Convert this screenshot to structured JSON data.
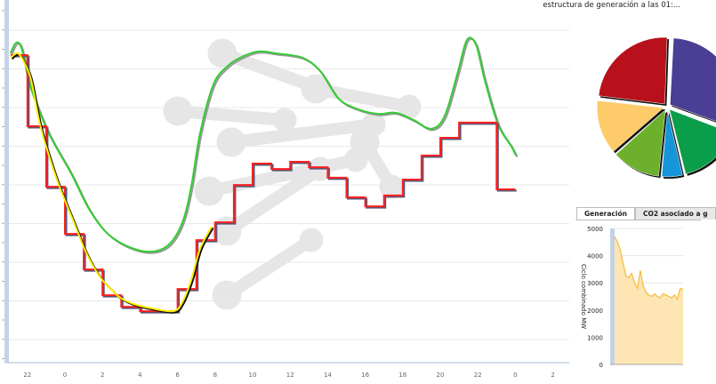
{
  "chart_data": [
    {
      "type": "line",
      "xlabel": "",
      "ylabel": "",
      "x_ticks": [
        "22",
        "0",
        "2",
        "4",
        "6",
        "8",
        "10",
        "12",
        "14",
        "16",
        "18",
        "20",
        "22",
        "0",
        "2"
      ],
      "x_tick_hours": [
        -2,
        0,
        2,
        4,
        6,
        8,
        10,
        12,
        14,
        16,
        18,
        20,
        22,
        24,
        26
      ],
      "xlim": [
        -3,
        27
      ],
      "ylim": [
        0,
        100
      ],
      "grid": true,
      "series": [
        {
          "color": "#33cc33",
          "style": "smooth",
          "x": [
            -2.9,
            -2.6,
            -2.3,
            -1.8,
            -0.85,
            0.33,
            1.28,
            2.23,
            3.41,
            4.6,
            5.55,
            6.26,
            6.73,
            7.2,
            7.91,
            8.63,
            9.34,
            10.28,
            11.23,
            12.65,
            13.6,
            14.55,
            15.5,
            16.68,
            17.63,
            18.58,
            19.53,
            20.24,
            20.95,
            21.42,
            21.9,
            22.37,
            23.08,
            23.79,
            24.03
          ],
          "y": [
            85.3,
            88.2,
            86.5,
            75.5,
            63.2,
            52.2,
            42.4,
            35.8,
            31.9,
            30.6,
            32.6,
            38.7,
            48.5,
            63.2,
            76.7,
            81.6,
            84.1,
            85.8,
            85.3,
            84.1,
            80.4,
            73,
            70.1,
            68.6,
            68.9,
            66.9,
            64.5,
            68.1,
            80.4,
            89,
            87.7,
            77.9,
            65.7,
            59.6,
            57.1
          ]
        },
        {
          "color": "#ff2020",
          "style": "step",
          "x": [
            -2.9,
            -2,
            -1,
            0,
            1,
            2,
            3,
            4,
            5,
            6,
            7,
            8,
            9,
            10,
            11,
            12,
            13,
            14,
            15,
            16,
            17,
            18,
            19,
            20,
            21,
            22,
            23
          ],
          "y": [
            84.8,
            65.2,
            48.5,
            35.5,
            25.7,
            18.6,
            15.4,
            14.2,
            14.2,
            20.3,
            33.8,
            38.7,
            49,
            54.9,
            53.4,
            55.4,
            53.9,
            51,
            45.6,
            43.1,
            46.1,
            50.5,
            57.1,
            62,
            66.2,
            66.2,
            47.8
          ],
          "x_end": 24
        },
        {
          "color": "#ffee00",
          "style": "line",
          "x": [
            -2.89,
            -2.51,
            -2.13,
            -1.8,
            -1.33,
            -0.85,
            -0.38,
            0.09,
            0.57,
            1.04,
            1.52,
            1.99,
            2.46,
            2.94,
            3.65,
            4.6,
            5.78,
            6.26,
            6.73,
            7.2,
            7.82
          ],
          "y": [
            84.1,
            85.3,
            82.4,
            77.9,
            65.7,
            57.1,
            49.8,
            43.6,
            37.5,
            31.4,
            26.5,
            22.8,
            20.3,
            17.9,
            16.2,
            15,
            14.2,
            16.7,
            22.8,
            31.4,
            37.5
          ]
        }
      ]
    },
    {
      "type": "pie",
      "title": "estructura de generación a las 01:...",
      "slices": [
        {
          "value": 29.7,
          "color": "#4a3f95"
        },
        {
          "value": 15.3,
          "color": "#0b9e4a"
        },
        {
          "value": 5.0,
          "color": "#1596d8"
        },
        {
          "value": 11.7,
          "color": "#6db02c"
        },
        {
          "value": 13.1,
          "color": "#fecb6b"
        },
        {
          "value": 23.6,
          "color": "#b8111b"
        }
      ]
    },
    {
      "type": "area",
      "tabs": [
        "Generación",
        "CO2 asociado a g"
      ],
      "ylabel": "Ciclo combinado MW",
      "y_ticks": [
        "5000",
        "4000",
        "3000",
        "2000",
        "1000",
        "0"
      ],
      "ylim": [
        0,
        5000
      ],
      "color": "#f6b93b",
      "fill": "#fde6b3",
      "values": [
        4700,
        4500,
        4200,
        3700,
        3250,
        3200,
        3350,
        3000,
        2800,
        3450,
        2900,
        2650,
        2550,
        2500,
        2600,
        2500,
        2450,
        2600,
        2550,
        2500,
        2450,
        2550,
        2400,
        2800,
        2750
      ]
    }
  ]
}
